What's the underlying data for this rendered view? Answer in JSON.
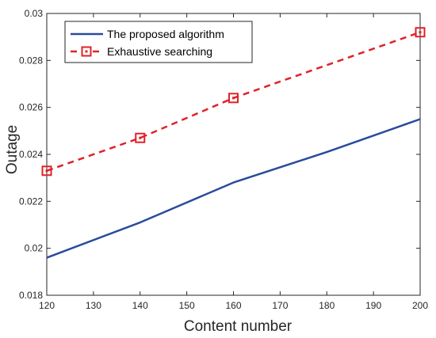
{
  "chart_data": {
    "type": "line",
    "title": "",
    "xlabel": "Content number",
    "ylabel": "Outage",
    "xlim": [
      120,
      200
    ],
    "ylim": [
      0.018,
      0.03
    ],
    "x_ticks": [
      120,
      130,
      140,
      150,
      160,
      170,
      180,
      190,
      200
    ],
    "x_tick_labels": [
      "120",
      "130",
      "140",
      "150",
      "160",
      "170",
      "180",
      "190",
      "200"
    ],
    "y_ticks": [
      0.018,
      0.02,
      0.022,
      0.024,
      0.026,
      0.028,
      0.03
    ],
    "y_tick_labels": [
      "0.018",
      "0.02",
      "0.022",
      "0.024",
      "0.026",
      "0.028",
      "0.03"
    ],
    "grid": false,
    "legend_position": "top-left",
    "series": [
      {
        "name": "The proposed algorithm",
        "color": "#2a4b9b",
        "line_style": "solid",
        "marker": "none",
        "x": [
          120,
          140,
          160,
          180,
          200
        ],
        "y": [
          0.0196,
          0.0211,
          0.0228,
          0.0241,
          0.0255
        ]
      },
      {
        "name": "Exhaustive searching",
        "color": "#e0222a",
        "line_style": "dashed",
        "marker": "square",
        "x": [
          120,
          140,
          160,
          200
        ],
        "y": [
          0.0233,
          0.0247,
          0.0264,
          0.0292
        ]
      }
    ]
  }
}
